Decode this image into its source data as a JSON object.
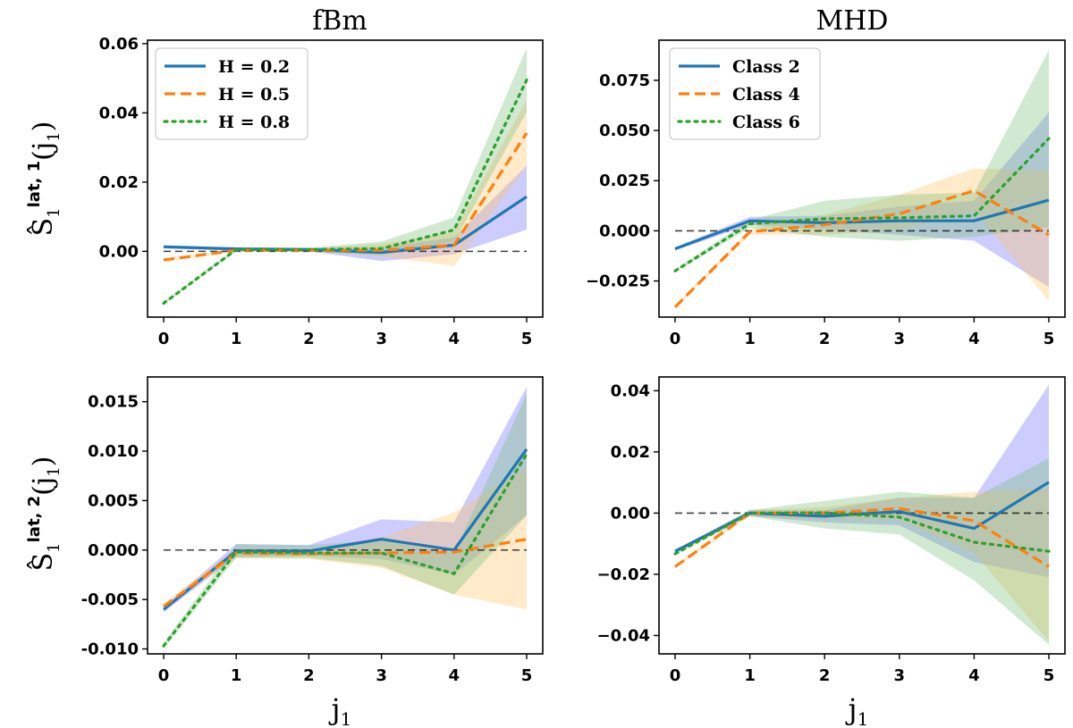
{
  "columns": [
    "fBm",
    "MHD"
  ],
  "row_labels": [
    {
      "base": "S",
      "hat": "̂",
      "sub": "1",
      "sup": "lat, 1",
      "arg": "(j",
      "arg_sub": "1",
      "close": ")"
    },
    {
      "base": "S",
      "hat": "̂",
      "sub": "1",
      "sup": "lat, 2",
      "arg": "(j",
      "arg_sub": "1",
      "close": ")"
    }
  ],
  "xlabel": {
    "base": "j",
    "sub": "1"
  },
  "colors": {
    "blue": "#1f77b4",
    "orange": "#ff7f0e",
    "green": "#2ca02c",
    "band_blue": "#6f6cff",
    "band_orange": "#ffc266",
    "band_green": "#79c179",
    "zero": "#000000"
  },
  "chart_data": [
    {
      "type": "line",
      "title": "fBm",
      "ylabel": "S^lat,1_1(j1)",
      "x": [
        0,
        1,
        2,
        3,
        4,
        5
      ],
      "xticks": [
        "0",
        "1",
        "2",
        "3",
        "4",
        "5"
      ],
      "ylim": [
        -0.019,
        0.061
      ],
      "yticks": [
        0.0,
        0.02,
        0.04,
        0.06
      ],
      "ytick_labels": [
        "0.00",
        "0.02",
        "0.04",
        "0.06"
      ],
      "zero_line": true,
      "legend": "top-left",
      "series": [
        {
          "name": "H = 0.2",
          "color": "blue",
          "style": "solid",
          "values": [
            0.0013,
            0.0007,
            0.0005,
            -0.0003,
            0.0018,
            0.0158
          ],
          "band_lo": [
            0.0008,
            0.0002,
            0.0,
            -0.0028,
            -0.0008,
            0.0063
          ],
          "band_hi": [
            0.0018,
            0.0012,
            0.001,
            0.0012,
            0.004,
            0.0248
          ]
        },
        {
          "name": "H = 0.5",
          "color": "orange",
          "style": "dashed",
          "values": [
            -0.0025,
            0.0003,
            0.0003,
            0.0003,
            0.0018,
            0.0342
          ],
          "band_lo": [
            -0.003,
            -0.0002,
            -0.0002,
            -0.0015,
            -0.0042,
            0.0245
          ],
          "band_hi": [
            -0.002,
            0.0008,
            0.0008,
            0.0022,
            0.0055,
            0.0438
          ]
        },
        {
          "name": "H = 0.8",
          "color": "green",
          "style": "dotted",
          "values": [
            -0.015,
            0.0005,
            0.0005,
            0.0008,
            0.0062,
            0.0495
          ],
          "band_lo": [
            -0.0155,
            0.0,
            0.0,
            -0.0012,
            0.0028,
            0.0402
          ],
          "band_hi": [
            -0.0145,
            0.001,
            0.001,
            0.0028,
            0.0098,
            0.0588
          ]
        }
      ]
    },
    {
      "type": "line",
      "title": "MHD",
      "ylabel": "",
      "x": [
        0,
        1,
        2,
        3,
        4,
        5
      ],
      "xticks": [
        "0",
        "1",
        "2",
        "3",
        "4",
        "5"
      ],
      "ylim": [
        -0.043,
        0.095
      ],
      "yticks": [
        -0.025,
        0.0,
        0.025,
        0.05,
        0.075
      ],
      "ytick_labels": [
        "−0.025",
        "0.000",
        "0.025",
        "0.050",
        "0.075"
      ],
      "zero_line": true,
      "legend": "top-left",
      "series": [
        {
          "name": "Class 2",
          "color": "blue",
          "style": "solid",
          "values": [
            -0.009,
            0.005,
            0.004,
            0.005,
            0.005,
            0.0153
          ],
          "band_lo": [
            -0.0098,
            0.003,
            0.0005,
            -0.002,
            -0.005,
            -0.028
          ],
          "band_hi": [
            -0.0082,
            0.007,
            0.0075,
            0.012,
            0.015,
            0.059
          ]
        },
        {
          "name": "Class 4",
          "color": "orange",
          "style": "dashed",
          "values": [
            -0.038,
            -0.0005,
            0.003,
            0.0085,
            0.02,
            -0.002
          ],
          "band_lo": [
            -0.0388,
            -0.002,
            -0.002,
            0.0005,
            0.01,
            -0.035
          ],
          "band_hi": [
            -0.0372,
            0.001,
            0.008,
            0.018,
            0.031,
            0.03
          ]
        },
        {
          "name": "Class 6",
          "color": "green",
          "style": "dotted",
          "values": [
            -0.02,
            0.0035,
            0.006,
            0.0065,
            0.0075,
            0.046
          ],
          "band_lo": [
            -0.0208,
            0.0015,
            -0.003,
            -0.005,
            -0.003,
            0.002
          ],
          "band_hi": [
            -0.0192,
            0.0055,
            0.015,
            0.018,
            0.019,
            0.09
          ]
        }
      ]
    },
    {
      "type": "line",
      "title": "",
      "ylabel": "S^lat,2_1(j1)",
      "x": [
        0,
        1,
        2,
        3,
        4,
        5
      ],
      "xticks": [
        "0",
        "1",
        "2",
        "3",
        "4",
        "5"
      ],
      "ylim": [
        -0.0105,
        0.0175
      ],
      "yticks": [
        -0.01,
        -0.005,
        0.0,
        0.005,
        0.01,
        0.015
      ],
      "ytick_labels": [
        "-0.010",
        "-0.005",
        "0.000",
        "0.005",
        "0.010",
        "0.015"
      ],
      "zero_line": true,
      "legend": "none",
      "series": [
        {
          "name": "H = 0.2",
          "color": "blue",
          "style": "solid",
          "values": [
            -0.006,
            -0.0001,
            -0.0001,
            0.0011,
            0.0,
            0.0102
          ],
          "band_lo": [
            -0.0063,
            -0.0007,
            -0.0006,
            -0.0009,
            -0.0025,
            0.0035
          ],
          "band_hi": [
            -0.0057,
            0.0006,
            0.0005,
            0.0031,
            0.0028,
            0.0165
          ]
        },
        {
          "name": "H = 0.5",
          "color": "orange",
          "style": "dashed",
          "values": [
            -0.0057,
            -0.0003,
            -0.0004,
            -0.0003,
            -0.0002,
            0.0011
          ],
          "band_lo": [
            -0.006,
            -0.0008,
            -0.0009,
            -0.0018,
            -0.0045,
            -0.006
          ],
          "band_hi": [
            -0.0054,
            0.0002,
            0.0001,
            0.0013,
            0.0038,
            0.0085
          ]
        },
        {
          "name": "H = 0.8",
          "color": "green",
          "style": "dotted",
          "values": [
            -0.0097,
            -0.0002,
            -0.0003,
            -0.0003,
            -0.0024,
            0.0097
          ],
          "band_lo": [
            -0.01,
            -0.0008,
            -0.0008,
            -0.0016,
            -0.0045,
            0.0035
          ],
          "band_hi": [
            -0.0094,
            0.0006,
            0.0005,
            0.001,
            -0.0003,
            0.0158
          ]
        }
      ]
    },
    {
      "type": "line",
      "title": "",
      "ylabel": "",
      "x": [
        0,
        1,
        2,
        3,
        4,
        5
      ],
      "xticks": [
        "0",
        "1",
        "2",
        "3",
        "4",
        "5"
      ],
      "ylim": [
        -0.046,
        0.0445
      ],
      "yticks": [
        -0.04,
        -0.02,
        0.0,
        0.02,
        0.04
      ],
      "ytick_labels": [
        "−0.04",
        "−0.02",
        "0.00",
        "0.02",
        "0.04"
      ],
      "zero_line": true,
      "legend": "none",
      "series": [
        {
          "name": "Class 2",
          "color": "blue",
          "style": "solid",
          "values": [
            -0.0125,
            0.0,
            -0.001,
            0.0005,
            -0.005,
            0.0101
          ],
          "band_lo": [
            -0.013,
            -0.001,
            -0.003,
            -0.004,
            -0.016,
            -0.021
          ],
          "band_hi": [
            -0.012,
            0.001,
            0.001,
            0.005,
            0.005,
            0.042
          ]
        },
        {
          "name": "Class 4",
          "color": "orange",
          "style": "dashed",
          "values": [
            -0.0175,
            0.0,
            0.0,
            0.0015,
            -0.0025,
            -0.0175
          ],
          "band_lo": [
            -0.018,
            -0.001,
            -0.002,
            -0.002,
            -0.013,
            -0.042
          ],
          "band_hi": [
            -0.017,
            0.001,
            0.002,
            0.005,
            0.007,
            0.008
          ]
        },
        {
          "name": "Class 6",
          "color": "green",
          "style": "dotted",
          "values": [
            -0.0133,
            0.0,
            0.0001,
            -0.0013,
            -0.0095,
            -0.0125
          ],
          "band_lo": [
            -0.0138,
            -0.001,
            -0.005,
            -0.007,
            -0.022,
            -0.043
          ],
          "band_hi": [
            -0.0128,
            0.001,
            0.004,
            0.007,
            0.005,
            0.018
          ]
        }
      ]
    }
  ]
}
